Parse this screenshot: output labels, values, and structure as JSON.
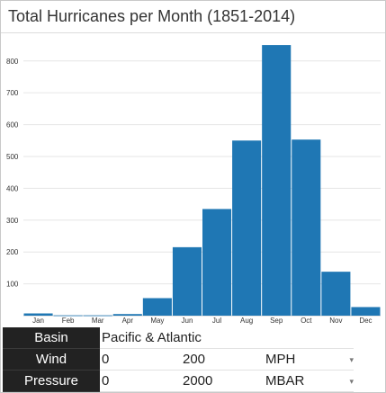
{
  "title": "Total Hurricanes per Month (1851-2014)",
  "chart_data": {
    "type": "bar",
    "categories": [
      "Jan",
      "Feb",
      "Mar",
      "Apr",
      "May",
      "Jun",
      "Jul",
      "Aug",
      "Sep",
      "Oct",
      "Nov",
      "Dec"
    ],
    "values": [
      7,
      1,
      1,
      5,
      55,
      215,
      335,
      550,
      850,
      553,
      138,
      27
    ],
    "yticks": [
      100,
      200,
      300,
      400,
      500,
      600,
      700,
      800
    ],
    "ylim": [
      0,
      870
    ],
    "grid": true,
    "bar_color": "#1f77b4"
  },
  "controls": {
    "basin": {
      "label": "Basin",
      "value": "Pacific & Atlantic"
    },
    "wind": {
      "label": "Wind",
      "min": "0",
      "max": "200",
      "unit": "MPH"
    },
    "pressure": {
      "label": "Pressure",
      "min": "0",
      "max": "2000",
      "unit": "MBAR"
    }
  }
}
